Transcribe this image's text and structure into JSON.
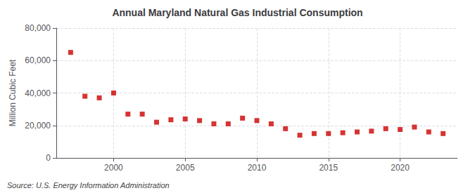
{
  "chart_data": {
    "type": "scatter",
    "title": "Annual Maryland Natural Gas Industrial Consumption",
    "ylabel": "Million Cubic Feet",
    "annotation": "Source: U.S. Energy Information Administration",
    "x": [
      1997,
      1998,
      1999,
      2000,
      2001,
      2002,
      2003,
      2004,
      2005,
      2006,
      2007,
      2008,
      2009,
      2010,
      2011,
      2012,
      2013,
      2014,
      2015,
      2016,
      2017,
      2018,
      2019,
      2020,
      2021,
      2022,
      2023
    ],
    "values": [
      65000,
      38000,
      37000,
      40000,
      27000,
      27000,
      22000,
      23500,
      24000,
      23000,
      21000,
      21000,
      24500,
      23000,
      21000,
      18000,
      14000,
      15000,
      15000,
      15500,
      16000,
      16500,
      18000,
      17500,
      19000,
      16000,
      15000
    ],
    "color": "#cc0000",
    "marker": "square",
    "xlim": [
      1996,
      2024
    ],
    "xticks": [
      2000,
      2005,
      2010,
      2015,
      2020
    ],
    "ylim": [
      0,
      80000
    ],
    "yticks": [
      0,
      {
        "value": 20000,
        "label": "20,000"
      },
      {
        "value": 40000,
        "label": "40,000"
      },
      {
        "value": 60000,
        "label": "60,000"
      },
      {
        "value": 80000,
        "label": "80,000"
      }
    ],
    "grid": true
  }
}
